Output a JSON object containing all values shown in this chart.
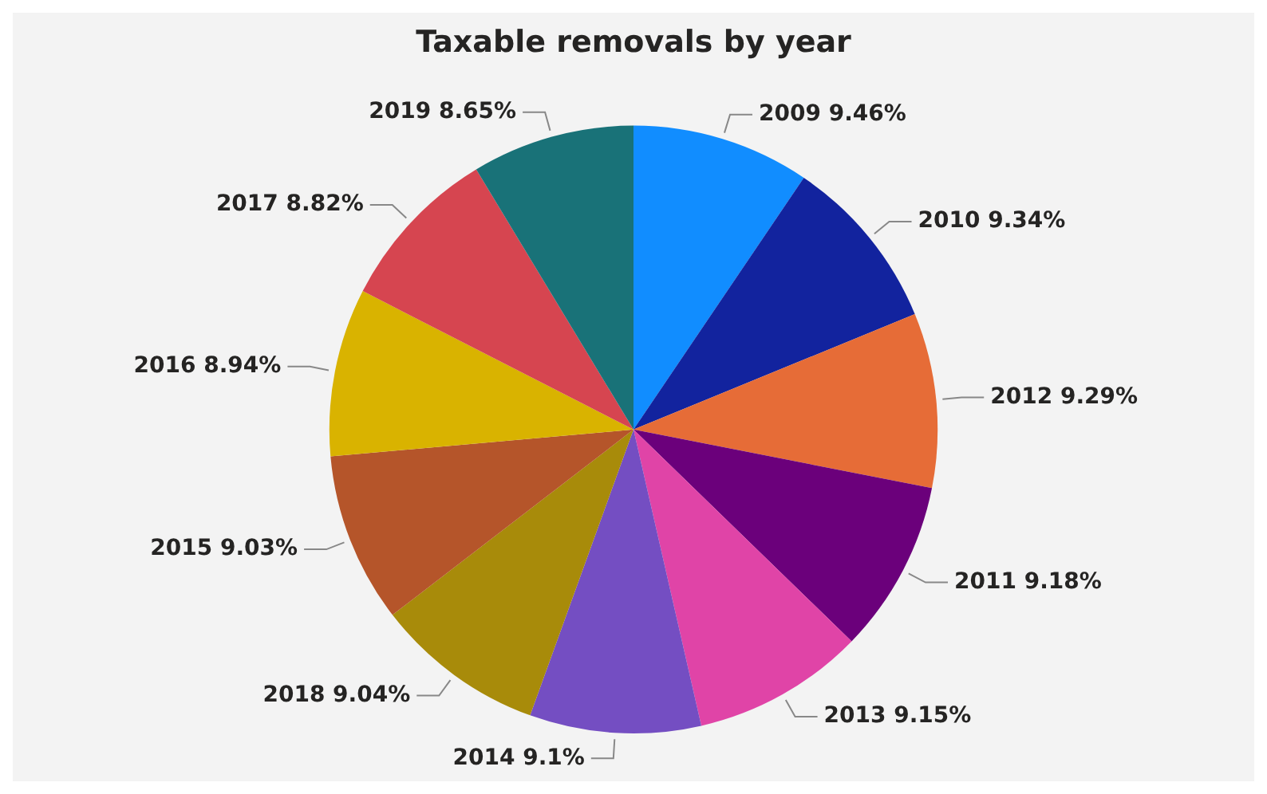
{
  "chart_data": {
    "type": "pie",
    "title": "Taxable removals by year",
    "categories": [
      "2009",
      "2010",
      "2012",
      "2011",
      "2013",
      "2014",
      "2018",
      "2015",
      "2016",
      "2017",
      "2019"
    ],
    "values": [
      9.46,
      9.34,
      9.29,
      9.18,
      9.15,
      9.1,
      9.04,
      9.03,
      8.94,
      8.82,
      8.65
    ],
    "value_labels": [
      "9.46%",
      "9.34%",
      "9.29%",
      "9.18%",
      "9.15%",
      "9.1%",
      "9.04%",
      "9.03%",
      "8.94%",
      "8.82%",
      "8.65%"
    ],
    "colors": [
      "#118dff",
      "#12239e",
      "#e66c37",
      "#6b007b",
      "#e044a7",
      "#744ec2",
      "#a88b0a",
      "#b5552a",
      "#d9b300",
      "#d64550",
      "#197278"
    ],
    "legend": false
  }
}
